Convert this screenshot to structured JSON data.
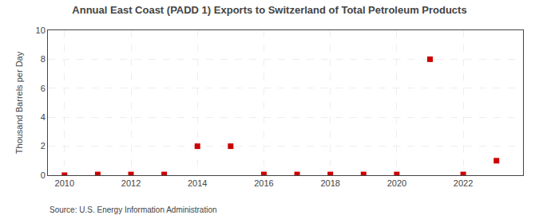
{
  "chart_data": {
    "type": "scatter",
    "title": "Annual East Coast (PADD 1) Exports to Switzerland of Total Petroleum Products",
    "ylabel": "Thousand Barrels per Day",
    "x": [
      2010,
      2011,
      2012,
      2013,
      2014,
      2015,
      2016,
      2017,
      2018,
      2019,
      2020,
      2021,
      2022,
      2023
    ],
    "values": [
      0.0,
      0.05,
      0.05,
      0.05,
      2.0,
      2.0,
      0.05,
      0.05,
      0.05,
      0.05,
      0.05,
      8.0,
      0.05,
      1.0
    ],
    "color": "#cc0000",
    "marker": "square",
    "xlim": [
      2009.5,
      2023.8
    ],
    "ylim": [
      0,
      10
    ],
    "xticks": [
      2010,
      2012,
      2014,
      2016,
      2018,
      2020,
      2022
    ],
    "yticks": [
      0,
      2,
      4,
      6,
      8,
      10
    ],
    "grid": true,
    "annotations": [
      "Source: U.S. Energy Information Administration"
    ]
  }
}
